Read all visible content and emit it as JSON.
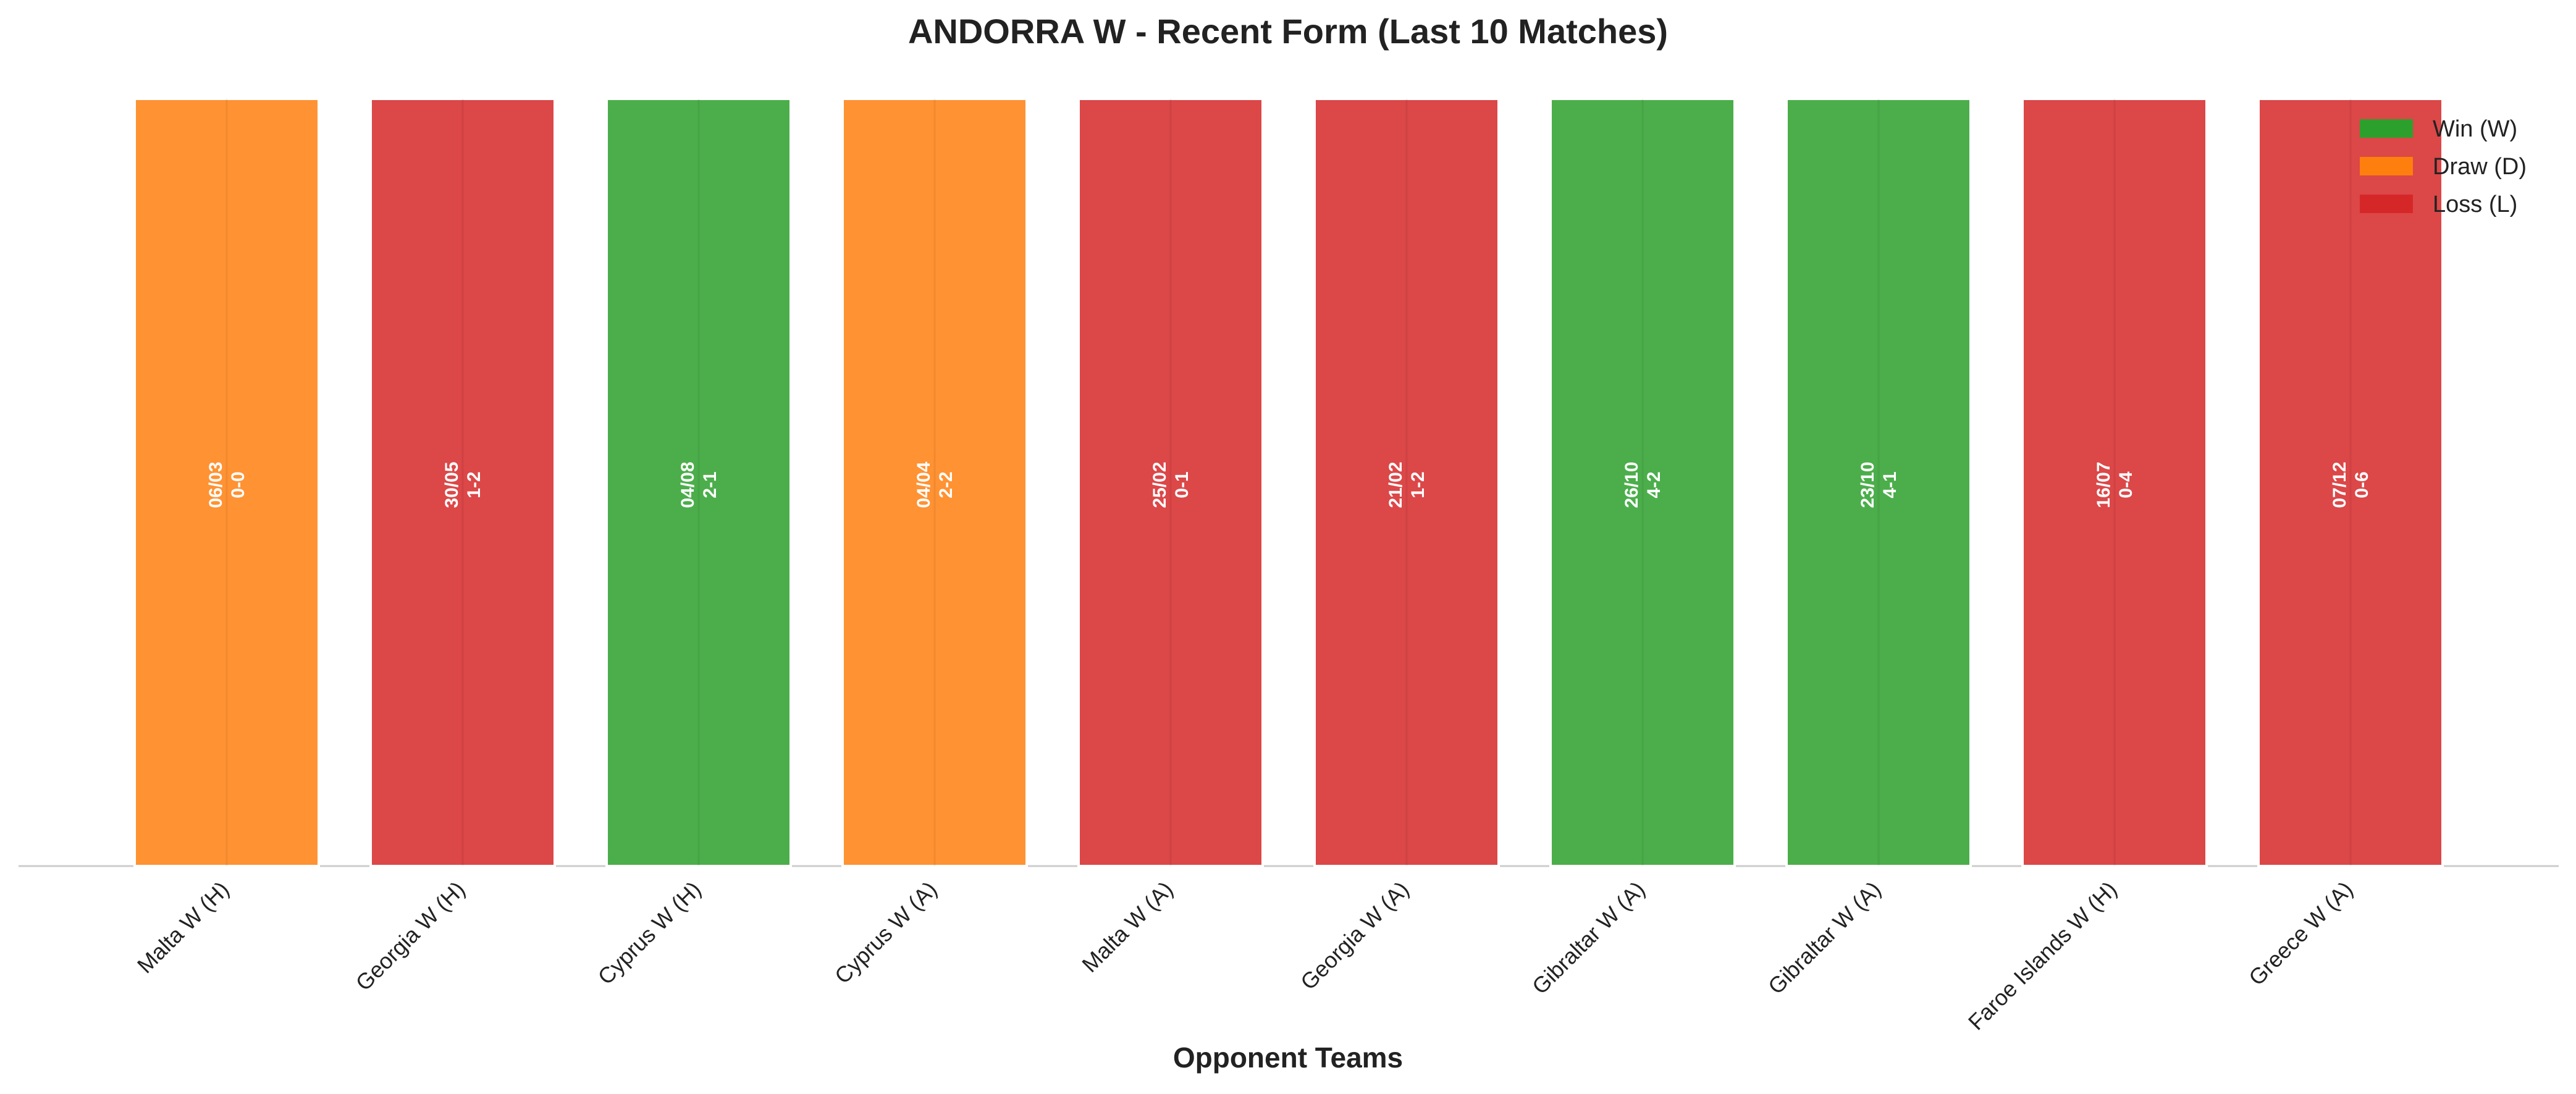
{
  "chart_data": {
    "type": "bar",
    "title": "ANDORRA W - Recent Form (Last 10 Matches)",
    "x_label": "Opponent Teams",
    "categories": [
      "Malta W (H)",
      "Georgia W (H)",
      "Cyprus W (H)",
      "Cyprus W (A)",
      "Malta W (A)",
      "Georgia W (A)",
      "Gibraltar W (A)",
      "Gibraltar W (A)",
      "Faroe Islands W (H)",
      "Greece W (A)"
    ],
    "annotations": [
      [
        "06/03",
        "0-0"
      ],
      [
        "30/05",
        "1-2"
      ],
      [
        "04/08",
        "2-1"
      ],
      [
        "04/04",
        "2-2"
      ],
      [
        "25/02",
        "0-1"
      ],
      [
        "21/02",
        "1-2"
      ],
      [
        "26/10",
        "4-2"
      ],
      [
        "23/10",
        "4-1"
      ],
      [
        "16/07",
        "0-4"
      ],
      [
        "07/12",
        "0-6"
      ]
    ],
    "series": [
      {
        "name": "Win (W)",
        "color": "#2ca02c",
        "values": [
          null,
          null,
          1,
          null,
          null,
          null,
          1,
          1,
          null,
          null
        ]
      },
      {
        "name": "Draw (D)",
        "color": "#ff7f0e",
        "values": [
          1,
          null,
          null,
          1,
          null,
          null,
          null,
          null,
          null,
          null
        ]
      },
      {
        "name": "Loss (L)",
        "color": "#d62728",
        "values": [
          null,
          1,
          null,
          null,
          1,
          1,
          null,
          null,
          1,
          1
        ]
      }
    ],
    "ylim": [
      0,
      1
    ],
    "legend": "upper right"
  }
}
